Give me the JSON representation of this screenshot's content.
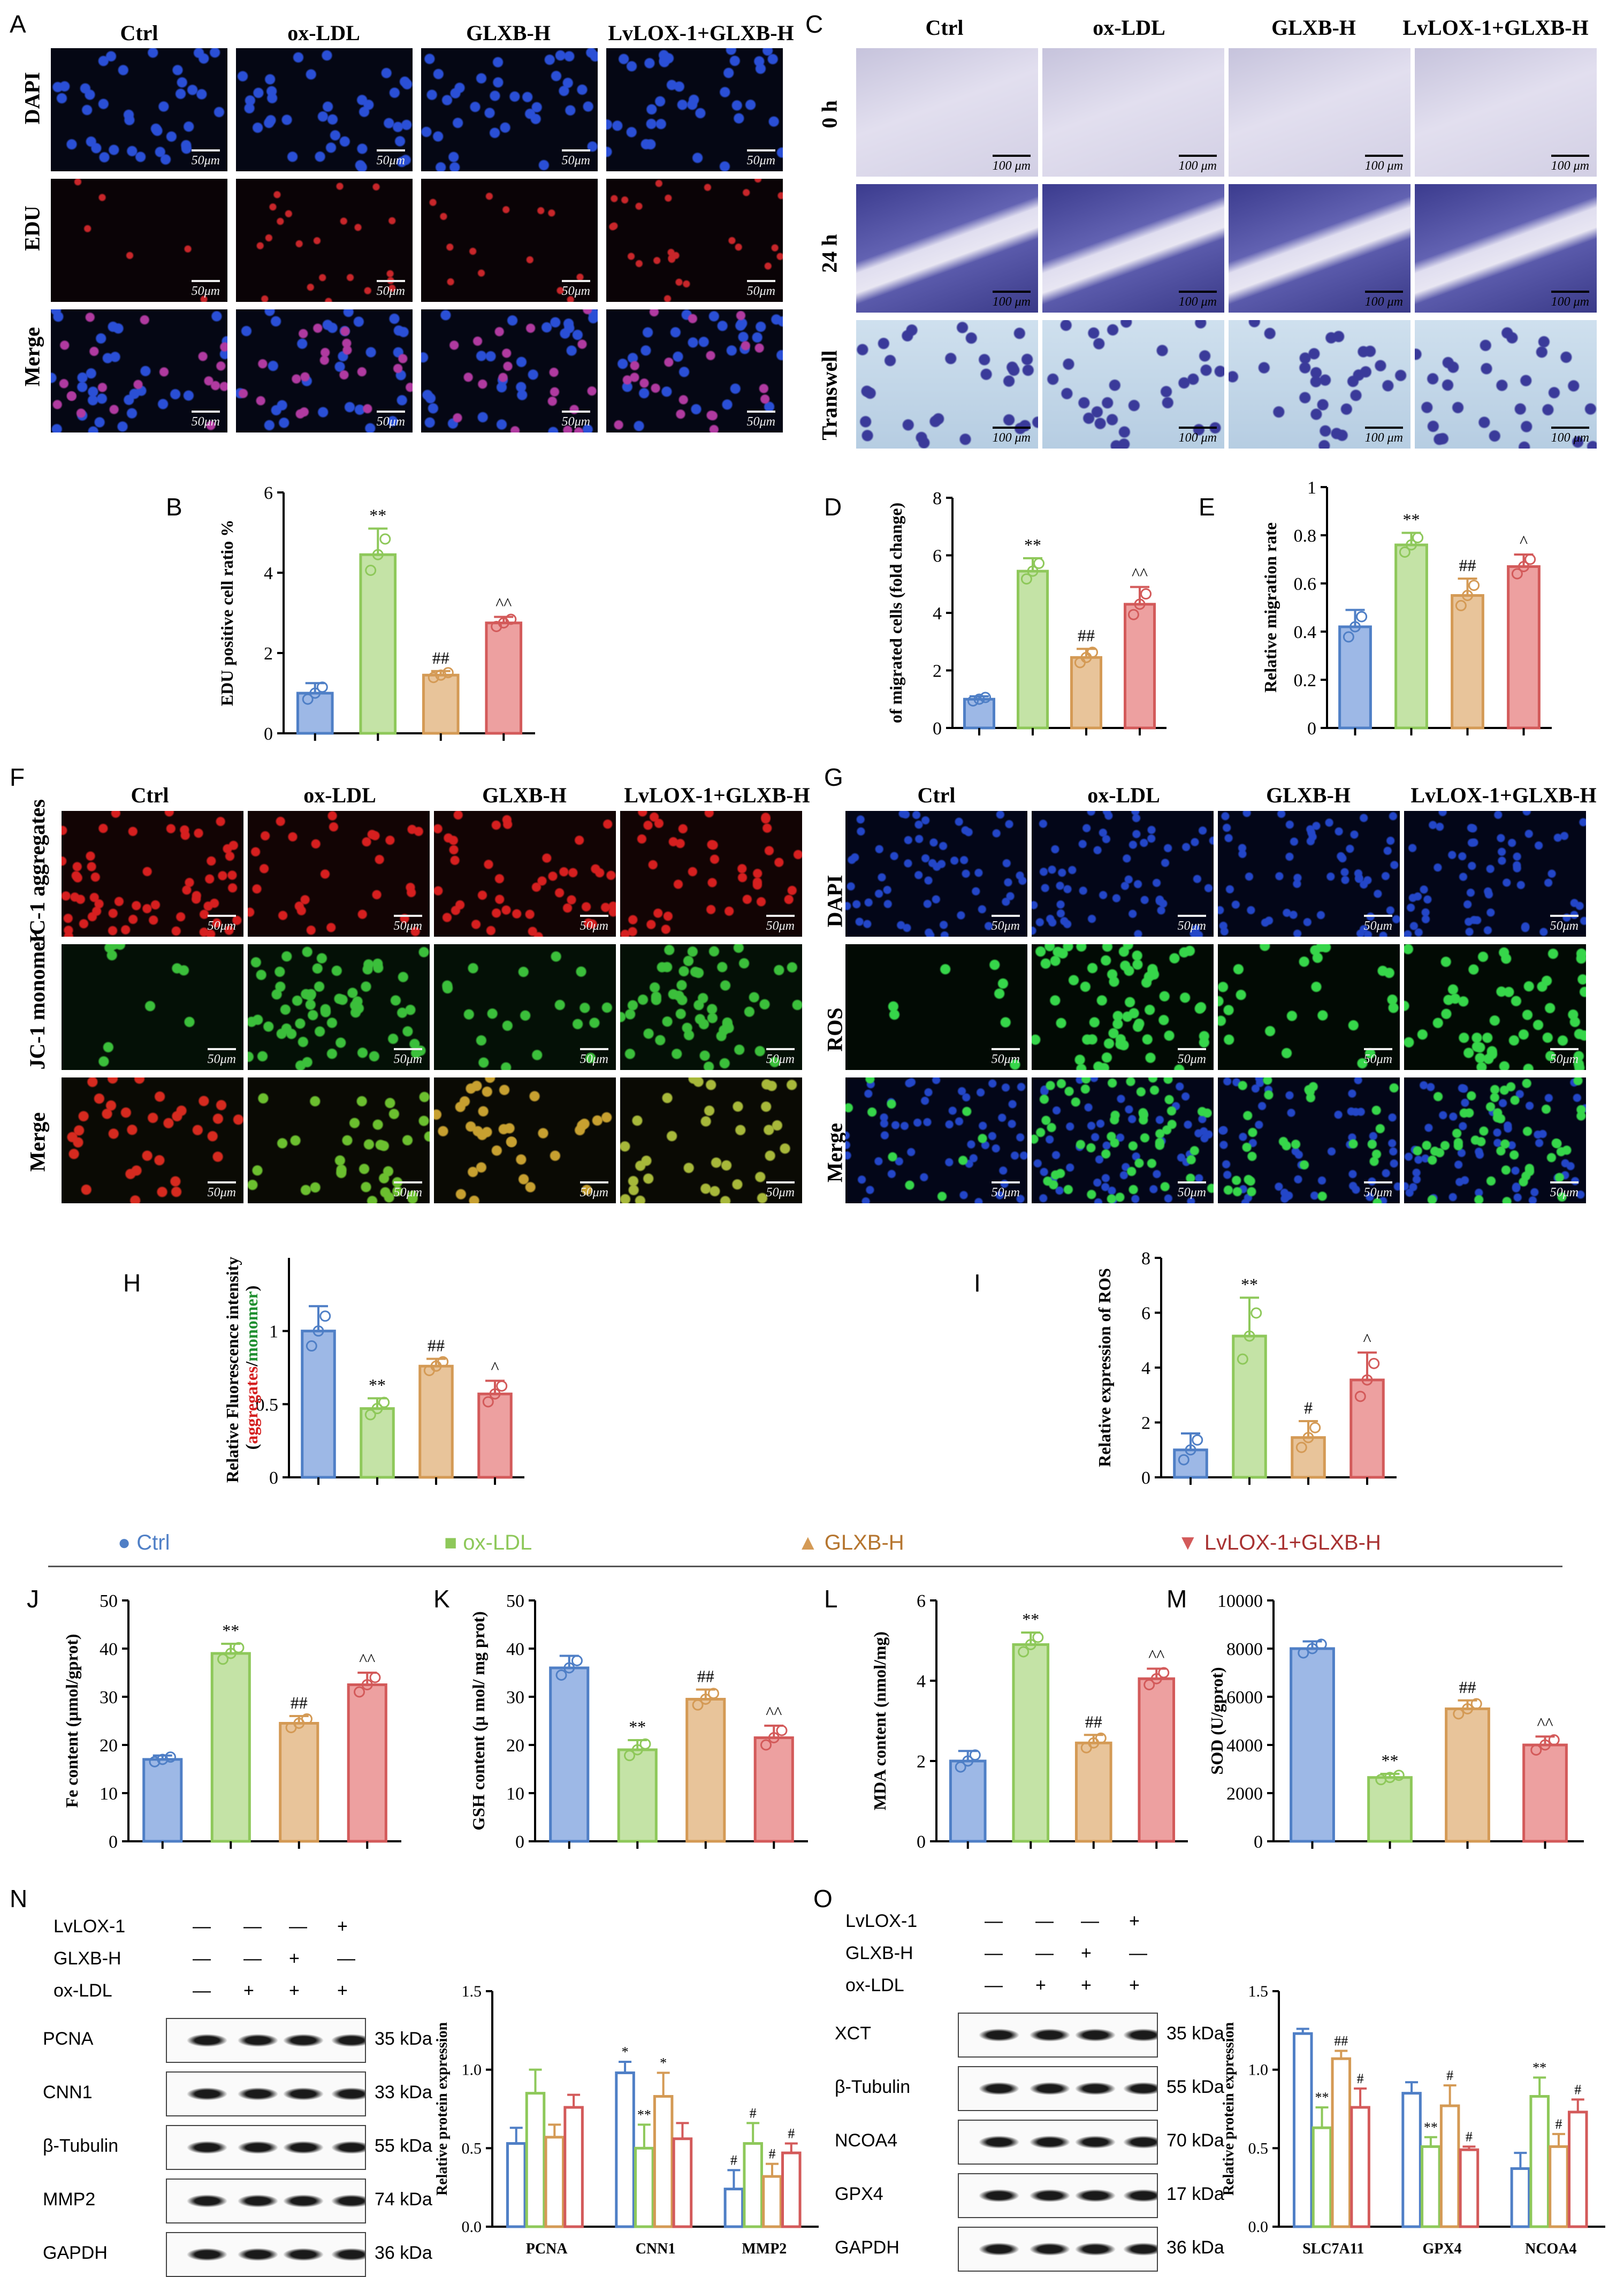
{
  "groups": [
    "Ctrl",
    "ox-LDL",
    "GLXB-H",
    "LvLOX-1+GLXB-H"
  ],
  "colors": {
    "ctrl": "#4f7fc6",
    "oxldl": "#8ec85a",
    "glxb": "#d49a55",
    "lvlox": "#d35a5a"
  },
  "panels": {
    "A": {
      "letter": "A",
      "rows": [
        "DAPI",
        "EDU",
        "Merge"
      ],
      "scale": "50μm"
    },
    "C": {
      "letter": "C",
      "rows": [
        "0 h",
        "24 h",
        "Transwell"
      ],
      "scale": "100 μm"
    },
    "F": {
      "letter": "F",
      "rows": [
        "JC-1 aggregates",
        "JC-1 monomer",
        "Merge"
      ],
      "scale": "50μm"
    },
    "G": {
      "letter": "G",
      "rows": [
        "DAPI",
        "ROS",
        "Merge"
      ],
      "scale": "50μm"
    },
    "N": {
      "letter": "N",
      "row_labels": [
        "LvLOX-1",
        "GLXB-H",
        "ox-LDL"
      ],
      "signs": [
        [
          "—",
          "—",
          "—",
          "+"
        ],
        [
          "—",
          "—",
          "+",
          "—"
        ],
        [
          "—",
          "+",
          "+",
          "+"
        ]
      ],
      "bands": [
        {
          "name": "PCNA",
          "kda": "35 kDa"
        },
        {
          "name": "CNN1",
          "kda": "33 kDa"
        },
        {
          "name": "β-Tubulin",
          "kda": "55 kDa"
        },
        {
          "name": "MMP2",
          "kda": "74 kDa"
        },
        {
          "name": "GAPDH",
          "kda": "36 kDa"
        }
      ]
    },
    "O": {
      "letter": "O",
      "row_labels": [
        "LvLOX-1",
        "GLXB-H",
        "ox-LDL"
      ],
      "signs": [
        [
          "—",
          "—",
          "—",
          "+"
        ],
        [
          "—",
          "—",
          "+",
          "—"
        ],
        [
          "—",
          "+",
          "+",
          "+"
        ]
      ],
      "bands": [
        {
          "name": "XCT",
          "kda": "35 kDa"
        },
        {
          "name": "β-Tubulin",
          "kda": "55 kDa"
        },
        {
          "name": "NCOA4",
          "kda": "70 kDa"
        },
        {
          "name": "GPX4",
          "kda": "17 kDa"
        },
        {
          "name": "GAPDH",
          "kda": "36 kDa"
        }
      ]
    }
  },
  "legend": [
    "Ctrl",
    "ox-LDL",
    "GLXB-H",
    "LvLOX-1+GLXB-H"
  ],
  "chart_data": [
    {
      "id": "B",
      "type": "bar",
      "ylabel": "EDU positive cell ratio %",
      "ylim": [
        0,
        6
      ],
      "ticks": [
        0,
        2,
        4,
        6
      ],
      "values": [
        1.0,
        4.45,
        1.45,
        2.75
      ],
      "errors": [
        0.25,
        0.65,
        0.1,
        0.15
      ],
      "marks": [
        "",
        "**",
        "##",
        "^^"
      ]
    },
    {
      "id": "D",
      "type": "bar",
      "ylabel": "of migrated cells (fold change)",
      "ylim": [
        0,
        8
      ],
      "ticks": [
        0,
        2,
        4,
        6,
        8
      ],
      "values": [
        1.0,
        5.45,
        2.45,
        4.3
      ],
      "errors": [
        0.1,
        0.45,
        0.3,
        0.6
      ],
      "marks": [
        "",
        "**",
        "##",
        "^^"
      ]
    },
    {
      "id": "E",
      "type": "bar",
      "ylabel": "Relative migration rate",
      "ylim": [
        0,
        1.0
      ],
      "ticks": [
        0.0,
        0.2,
        0.4,
        0.6,
        0.8,
        1.0
      ],
      "values": [
        0.42,
        0.76,
        0.55,
        0.67
      ],
      "errors": [
        0.07,
        0.05,
        0.07,
        0.05
      ],
      "marks": [
        "",
        "**",
        "##",
        "^"
      ]
    },
    {
      "id": "H",
      "type": "bar",
      "ylabel": "Relative Fluorescence intensity (aggregates/monomer)",
      "ylim": [
        0,
        1.5
      ],
      "ticks": [
        0.0,
        0.5,
        1.0
      ],
      "values": [
        1.0,
        0.47,
        0.76,
        0.57
      ],
      "errors": [
        0.17,
        0.07,
        0.05,
        0.09
      ],
      "marks": [
        "",
        "**",
        "##",
        "^"
      ]
    },
    {
      "id": "I",
      "type": "bar",
      "ylabel": "Relative expression of ROS",
      "ylim": [
        0,
        8
      ],
      "ticks": [
        0,
        2,
        4,
        6,
        8
      ],
      "values": [
        1.0,
        5.15,
        1.45,
        3.55
      ],
      "errors": [
        0.6,
        1.4,
        0.6,
        1.0
      ],
      "marks": [
        "",
        "**",
        "#",
        "^"
      ]
    },
    {
      "id": "J",
      "type": "bar",
      "ylabel": "Fe content (μmol/gprot)",
      "ylim": [
        0,
        50
      ],
      "ticks": [
        0,
        10,
        20,
        30,
        40,
        50
      ],
      "values": [
        17,
        39,
        24.5,
        32.5
      ],
      "errors": [
        0.8,
        2,
        1.5,
        2.5
      ],
      "marks": [
        "",
        "**",
        "##",
        "^^"
      ]
    },
    {
      "id": "K",
      "type": "bar",
      "ylabel": "GSH content (μ mol/ mg prot)",
      "ylim": [
        0,
        50
      ],
      "ticks": [
        0,
        10,
        20,
        30,
        40,
        50
      ],
      "values": [
        36,
        19,
        29.5,
        21.5
      ],
      "errors": [
        2.5,
        2,
        2,
        2.5
      ],
      "marks": [
        "",
        "**",
        "##",
        "^^"
      ]
    },
    {
      "id": "L",
      "type": "bar",
      "ylabel": "MDA content (nmol/mg)",
      "ylim": [
        0,
        6
      ],
      "ticks": [
        0,
        2,
        4,
        6
      ],
      "values": [
        2.0,
        4.9,
        2.45,
        4.05
      ],
      "errors": [
        0.25,
        0.3,
        0.2,
        0.25
      ],
      "marks": [
        "",
        "**",
        "##",
        "^^"
      ]
    },
    {
      "id": "M",
      "type": "bar",
      "ylabel": "SOD (U/gprot)",
      "ylim": [
        0,
        10000
      ],
      "ticks": [
        0,
        2000,
        4000,
        6000,
        8000,
        10000
      ],
      "values": [
        8000,
        2650,
        5500,
        4000
      ],
      "errors": [
        300,
        150,
        350,
        350
      ],
      "marks": [
        "",
        "**",
        "##",
        "^^"
      ]
    },
    {
      "id": "N2",
      "type": "bar",
      "ylabel": "Relative protein expression",
      "ylim": [
        0,
        1.5
      ],
      "ticks": [
        0.0,
        0.5,
        1.0,
        1.5
      ],
      "categories": [
        "PCNA",
        "CNN1",
        "MMP2"
      ],
      "series": [
        {
          "values": [
            0.53,
            0.98,
            0.24
          ],
          "errors": [
            0.1,
            0.07,
            0.12
          ]
        },
        {
          "values": [
            0.85,
            0.5,
            0.53
          ],
          "errors": [
            0.15,
            0.15,
            0.13
          ]
        },
        {
          "values": [
            0.57,
            0.83,
            0.32
          ],
          "errors": [
            0.08,
            0.15,
            0.08
          ]
        },
        {
          "values": [
            0.76,
            0.56,
            0.47
          ],
          "errors": [
            0.08,
            0.1,
            0.06
          ]
        }
      ],
      "marks": [
        [
          "",
          "",
          "",
          ""
        ],
        [
          "*",
          "**",
          "*",
          ""
        ],
        [
          "#",
          "#",
          "#",
          "#"
        ]
      ]
    },
    {
      "id": "O2",
      "type": "bar",
      "ylabel": "Relative protein expression",
      "ylim": [
        0,
        1.5
      ],
      "ticks": [
        0.0,
        0.5,
        1.0,
        1.5
      ],
      "categories": [
        "SLC7A11",
        "GPX4",
        "NCOA4"
      ],
      "series": [
        {
          "values": [
            1.23,
            0.85,
            0.37
          ],
          "errors": [
            0.03,
            0.07,
            0.1
          ]
        },
        {
          "values": [
            0.63,
            0.51,
            0.83
          ],
          "errors": [
            0.13,
            0.06,
            0.12
          ]
        },
        {
          "values": [
            1.07,
            0.77,
            0.51
          ],
          "errors": [
            0.05,
            0.13,
            0.08
          ]
        },
        {
          "values": [
            0.76,
            0.49,
            0.73
          ],
          "errors": [
            0.12,
            0.02,
            0.08
          ]
        }
      ],
      "marks": [
        [
          "",
          "**",
          "##",
          "#"
        ],
        [
          "",
          "**",
          "#",
          "#"
        ],
        [
          "",
          "**",
          "#",
          "#"
        ]
      ]
    }
  ]
}
